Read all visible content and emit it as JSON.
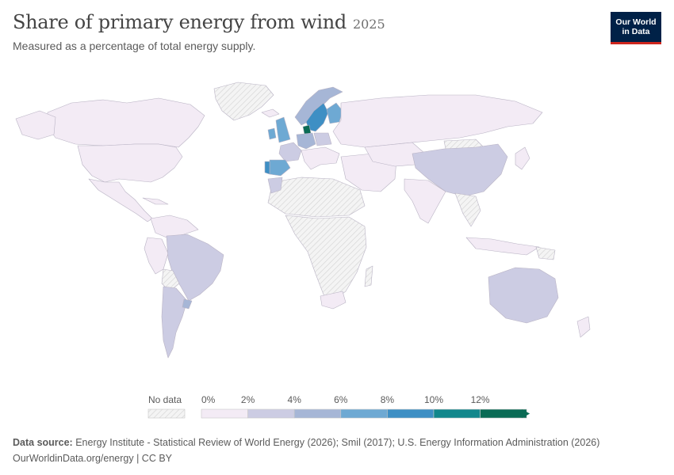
{
  "header": {
    "title": "Share of primary energy from wind",
    "year": "2025",
    "subtitle": "Measured as a percentage of total energy supply."
  },
  "logo": {
    "line1": "Our World",
    "line2": "in Data"
  },
  "legend": {
    "no_data_label": "No data",
    "bins": [
      "0%",
      "2%",
      "4%",
      "6%",
      "8%",
      "10%",
      "12%"
    ],
    "colors": [
      "#f3ebf5",
      "#ccccE3",
      "#a6b6d6",
      "#6ea9d3",
      "#3e8fc4",
      "#12878c",
      "#0a6b55"
    ],
    "no_data_color": "#e8e8e8"
  },
  "chart_data": {
    "type": "map",
    "metric": "Share of primary energy from wind (%)",
    "year": "2025",
    "bins": [
      0,
      2,
      4,
      6,
      8,
      10,
      12
    ],
    "regions": [
      {
        "name": "Canada",
        "bin": "0-2%"
      },
      {
        "name": "United States",
        "bin": "0-2%"
      },
      {
        "name": "Mexico",
        "bin": "0-2%"
      },
      {
        "name": "Greenland",
        "bin": "No data"
      },
      {
        "name": "Brazil",
        "bin": "2-4%"
      },
      {
        "name": "Argentina",
        "bin": "2-4%"
      },
      {
        "name": "Chile",
        "bin": "2-4%"
      },
      {
        "name": "Colombia",
        "bin": "0-2%"
      },
      {
        "name": "Peru",
        "bin": "0-2%"
      },
      {
        "name": "Bolivia",
        "bin": "No data"
      },
      {
        "name": "Uruguay",
        "bin": "4-6%"
      },
      {
        "name": "United Kingdom",
        "bin": "6-8%"
      },
      {
        "name": "Ireland",
        "bin": "6-8%"
      },
      {
        "name": "Spain",
        "bin": "6-8%"
      },
      {
        "name": "Portugal",
        "bin": "8-10%"
      },
      {
        "name": "France",
        "bin": "2-4%"
      },
      {
        "name": "Germany",
        "bin": "4-6%"
      },
      {
        "name": "Denmark",
        "bin": "12%+"
      },
      {
        "name": "Sweden",
        "bin": "8-10%"
      },
      {
        "name": "Finland",
        "bin": "6-8%"
      },
      {
        "name": "Norway",
        "bin": "4-6%"
      },
      {
        "name": "Russia",
        "bin": "0-2%"
      },
      {
        "name": "China",
        "bin": "2-4%"
      },
      {
        "name": "India",
        "bin": "0-2%"
      },
      {
        "name": "Australia",
        "bin": "2-4%"
      },
      {
        "name": "Africa (most countries)",
        "bin": "No data"
      },
      {
        "name": "Morocco",
        "bin": "2-4%"
      },
      {
        "name": "South Africa",
        "bin": "0-2%"
      }
    ]
  },
  "footer": {
    "source_label": "Data source:",
    "source_text": "Energy Institute - Statistical Review of World Energy (2026); Smil (2017); U.S. Energy Information Administration (2026)",
    "link": "OurWorldinData.org/energy | CC BY"
  }
}
